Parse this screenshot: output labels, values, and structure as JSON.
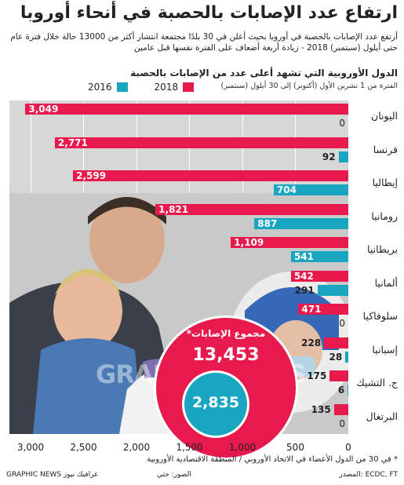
{
  "title": "ارتفاع عدد الإصابات بالحصبة في أنحاء أوروبا",
  "subtitle": "أرتفع عدد الإصابات بالحصبة في أوروبا بحيث أعلن في 30 بلدًا مجتمعة انتشار أكثر من 13000 حالة خلال فترة عام حتى أيلول (سبتمبر) 2018 - زيادة أربعة أضعاف على الفترة نفسها قبل عامين",
  "colors": {
    "y2018": "#e8194c",
    "y2016": "#19a6c1"
  },
  "chart_data": {
    "type": "bar",
    "orientation": "horizontal",
    "title": "الدول الأوروبية التي تشهد أعلى عدد من الإصابات بالحصبة",
    "subtitle": "الفترة من 1 تشرين الأول (أكتوبر) إلى 30 أيلول (سبتمبر)",
    "categories": [
      "اليونان",
      "فرنسا",
      "إيطاليا",
      "رومانيا",
      "بريطانيا",
      "ألمانيا",
      "سلوفاكيا",
      "إسبانيا",
      "ج. التشيك",
      "البرتغال"
    ],
    "series": [
      {
        "name": "2018",
        "values": [
          3049,
          2771,
          2599,
          1821,
          1109,
          542,
          471,
          228,
          175,
          135
        ],
        "labels": [
          "3,049",
          "2,771",
          "2,599",
          "1,821",
          "1,109",
          "542",
          "471",
          "228",
          "175",
          "135"
        ]
      },
      {
        "name": "2016",
        "values": [
          0,
          92,
          704,
          887,
          541,
          291,
          0,
          28,
          6,
          0
        ],
        "labels": [
          "0",
          "92",
          "704",
          "887",
          "541",
          "291",
          "0",
          "28",
          "6",
          "0"
        ]
      }
    ],
    "xlim": [
      0,
      3200
    ],
    "xticks": [
      "3,000",
      "2,500",
      "2,000",
      "1,500",
      "1,000",
      "500",
      "0"
    ],
    "xtick_values": [
      3000,
      2500,
      2000,
      1500,
      1000,
      500,
      0
    ],
    "reversed_axis": true,
    "grid": true,
    "legend": "top-left"
  },
  "totals": {
    "label": "مجموع الإصابات*",
    "y2018": "13,453",
    "y2016": "2,835"
  },
  "footnote": "* في 30 من الدول الأعضاء في الاتحاد الأوروبي / المنطقة الاقتصادية الأوروبية",
  "source": "المصدر: ECDC, FT",
  "photo_credit": "الصور: جتي",
  "credit": "GRAPHIC NEWS غرافيك نيوز",
  "watermark": "GRAPHIC NEWS"
}
